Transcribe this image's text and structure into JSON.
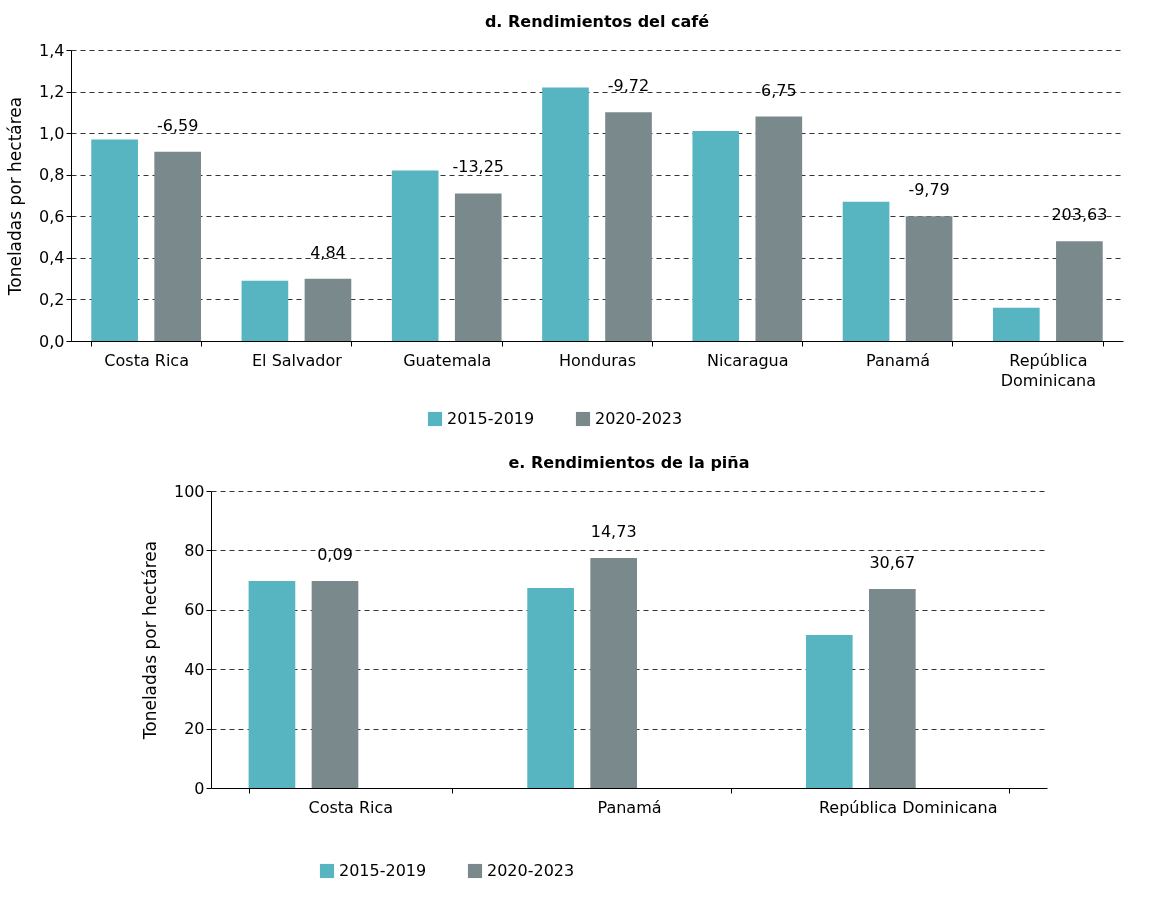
{
  "chart_data": [
    {
      "type": "bar",
      "title": "d. Rendimientos del café",
      "ylabel": "Toneladas por hectárea",
      "categories": [
        "Costa Rica",
        "El Salvador",
        "Guatemala",
        "Honduras",
        "Nicaragua",
        "Panamá",
        "República Dominicana"
      ],
      "series": [
        {
          "name": "2015-2019",
          "color": "#56b5c0",
          "values": [
            0.97,
            0.29,
            0.82,
            1.22,
            1.01,
            0.67,
            0.16
          ]
        },
        {
          "name": "2020-2023",
          "color": "#7a8a8c",
          "values": [
            0.91,
            0.3,
            0.71,
            1.1,
            1.08,
            0.6,
            0.48
          ]
        }
      ],
      "ylim": [
        0,
        1.4
      ],
      "yticks": [
        {
          "value": 0,
          "label": "0,0"
        },
        {
          "value": 0.2,
          "label": "0,2"
        },
        {
          "value": 0.4,
          "label": "0,4"
        },
        {
          "value": 0.6,
          "label": "0,6"
        },
        {
          "value": 0.8,
          "label": "0,8"
        },
        {
          "value": 1.0,
          "label": "1,0"
        },
        {
          "value": 1.2,
          "label": "1,2"
        },
        {
          "value": 1.4,
          "label": "1,4"
        }
      ],
      "annotations": [
        "-6,59",
        "4,84",
        "-13,25",
        "-9,72",
        "6,75",
        "-9,79",
        "203,63"
      ],
      "grid": "y",
      "legend": "bottom"
    },
    {
      "type": "bar",
      "title": "e. Rendimientos de la piña",
      "ylabel": "Toneladas por hectárea",
      "categories": [
        "Costa Rica",
        "Panamá",
        "República Dominicana"
      ],
      "series": [
        {
          "name": "2015-2019",
          "color": "#56b5c0",
          "values": [
            69.7,
            67.3,
            51.5
          ]
        },
        {
          "name": "2020-2023",
          "color": "#7a8a8c",
          "values": [
            69.7,
            77.4,
            67.0
          ]
        }
      ],
      "ylim": [
        0,
        100
      ],
      "yticks": [
        0,
        20,
        40,
        60,
        80,
        100
      ],
      "annotations": [
        "0,09",
        "14,73",
        "30,67"
      ],
      "grid": "y",
      "legend": "bottom"
    }
  ]
}
